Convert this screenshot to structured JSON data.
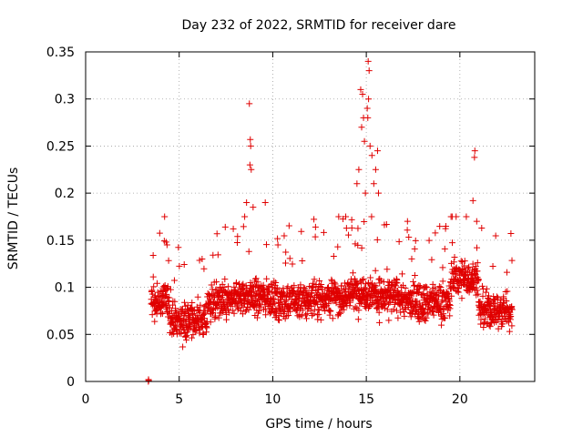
{
  "chart_data": {
    "type": "scatter",
    "title": "Day 232 of 2022, SRMTID for receiver dare",
    "xlabel": "GPS time / hours",
    "ylabel": "SRMTID / TECUs",
    "xlim": [
      0,
      24
    ],
    "ylim": [
      0,
      0.35
    ],
    "xticks": [
      0,
      5,
      10,
      15,
      20
    ],
    "xtick_labels": [
      "0",
      "5",
      "10",
      "15",
      "20"
    ],
    "yticks": [
      0,
      0.05,
      0.1,
      0.15,
      0.2,
      0.25,
      0.3,
      0.35
    ],
    "ytick_labels": [
      "0",
      "0.05",
      "0.1",
      "0.15",
      "0.2",
      "0.25",
      "0.3",
      "0.35"
    ],
    "grid": true,
    "marker": "+",
    "series": [
      {
        "name": "SRMTID",
        "color": "#e00000",
        "x_range": [
          3.5,
          22.8
        ],
        "points": [
          [
            3.35,
            0.0
          ],
          [
            3.36,
            0.002
          ],
          [
            3.37,
            0.001
          ],
          [
            8.75,
            0.295
          ],
          [
            8.8,
            0.257
          ],
          [
            8.82,
            0.25
          ],
          [
            8.78,
            0.23
          ],
          [
            8.85,
            0.225
          ],
          [
            8.6,
            0.19
          ],
          [
            9.6,
            0.19
          ],
          [
            8.95,
            0.185
          ],
          [
            8.5,
            0.175
          ],
          [
            14.7,
            0.31
          ],
          [
            14.8,
            0.305
          ],
          [
            14.85,
            0.28
          ],
          [
            14.75,
            0.27
          ],
          [
            14.9,
            0.255
          ],
          [
            15.1,
            0.34
          ],
          [
            15.15,
            0.33
          ],
          [
            15.12,
            0.3
          ],
          [
            15.05,
            0.29
          ],
          [
            15.08,
            0.28
          ],
          [
            15.2,
            0.25
          ],
          [
            15.3,
            0.24
          ],
          [
            15.6,
            0.245
          ],
          [
            15.5,
            0.225
          ],
          [
            15.4,
            0.21
          ],
          [
            14.6,
            0.225
          ],
          [
            14.5,
            0.21
          ],
          [
            14.95,
            0.2
          ],
          [
            15.65,
            0.2
          ],
          [
            20.8,
            0.245
          ],
          [
            20.78,
            0.238
          ],
          [
            20.7,
            0.192
          ],
          [
            20.9,
            0.17
          ],
          [
            4.3,
            0.148
          ],
          [
            4.35,
            0.145
          ],
          [
            17.2,
            0.17
          ],
          [
            19.8,
            0.175
          ]
        ]
      }
    ]
  }
}
